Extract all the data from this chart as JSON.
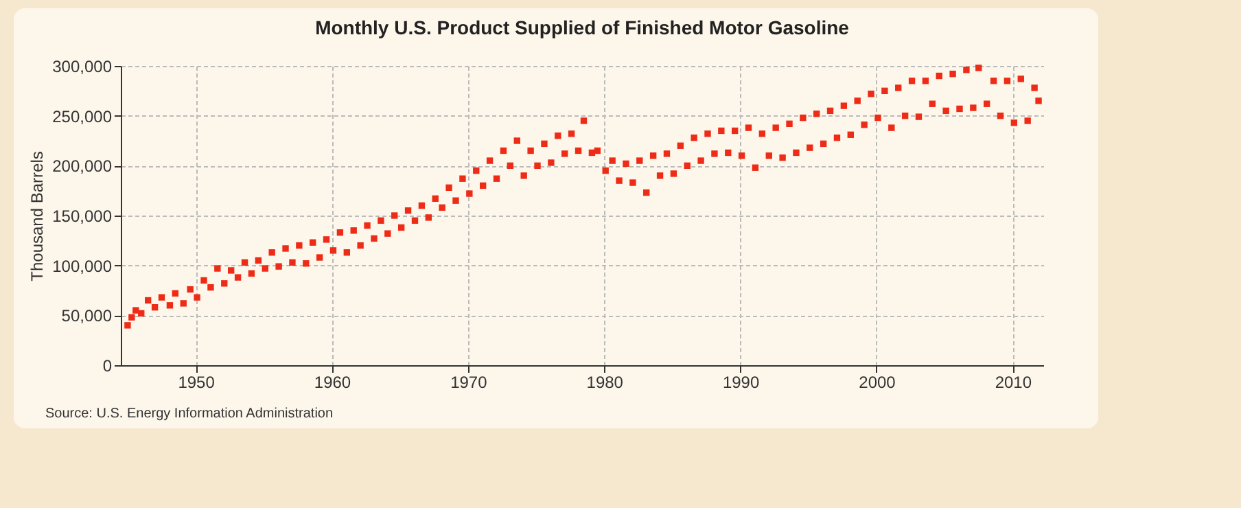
{
  "chart_data": {
    "type": "scatter",
    "title": "Monthly U.S. Product Supplied of Finished Motor Gasoline",
    "ylabel": "Thousand Barrels",
    "annotations": [
      "Source: U.S. Energy Information Administration"
    ],
    "marker": "square",
    "grid": true,
    "xlim": [
      1944.5,
      2012.25
    ],
    "xticks": [
      1950,
      1960,
      1970,
      1980,
      1990,
      2000,
      2010
    ],
    "ylim": [
      0,
      300000
    ],
    "yticks": [
      {
        "value": 0,
        "label": "0"
      },
      {
        "value": 50000,
        "label": "50,000"
      },
      {
        "value": 100000,
        "label": "100,000"
      },
      {
        "value": 150000,
        "label": "150,000"
      },
      {
        "value": 200000,
        "label": "200,000"
      },
      {
        "value": 250000,
        "label": "250,000"
      },
      {
        "value": 300000,
        "label": "300,000"
      }
    ],
    "x": [
      1945.0,
      1945.3,
      1945.6,
      1946.0,
      1946.5,
      1947.0,
      1947.5,
      1948.1,
      1948.5,
      1949.1,
      1949.6,
      1950.1,
      1950.6,
      1951.1,
      1951.6,
      1952.1,
      1952.6,
      1953.1,
      1953.6,
      1954.1,
      1954.6,
      1955.1,
      1955.6,
      1956.1,
      1956.6,
      1957.1,
      1957.6,
      1958.1,
      1958.6,
      1959.1,
      1959.6,
      1960.1,
      1960.6,
      1961.1,
      1961.6,
      1962.1,
      1962.6,
      1963.1,
      1963.6,
      1964.1,
      1964.6,
      1965.1,
      1965.6,
      1966.1,
      1966.6,
      1967.1,
      1967.6,
      1968.1,
      1968.6,
      1969.1,
      1969.6,
      1970.1,
      1970.6,
      1971.1,
      1971.6,
      1972.1,
      1972.6,
      1973.1,
      1973.6,
      1974.1,
      1974.6,
      1975.1,
      1975.6,
      1976.1,
      1976.6,
      1977.1,
      1977.6,
      1978.1,
      1978.5,
      1979.1,
      1979.5,
      1980.1,
      1980.6,
      1981.1,
      1981.6,
      1982.1,
      1982.6,
      1983.1,
      1983.6,
      1984.1,
      1984.6,
      1985.1,
      1985.6,
      1986.1,
      1986.6,
      1987.1,
      1987.6,
      1988.1,
      1988.6,
      1989.1,
      1989.6,
      1990.1,
      1990.6,
      1991.1,
      1991.6,
      1992.1,
      1992.6,
      1993.1,
      1993.6,
      1994.1,
      1994.6,
      1995.1,
      1995.6,
      1996.1,
      1996.6,
      1997.1,
      1997.6,
      1998.1,
      1998.6,
      1999.1,
      1999.6,
      2000.1,
      2000.6,
      2001.1,
      2001.6,
      2002.1,
      2002.6,
      2003.1,
      2003.6,
      2004.1,
      2004.6,
      2005.1,
      2005.6,
      2006.1,
      2006.6,
      2007.1,
      2007.5,
      2008.1,
      2008.6,
      2009.1,
      2009.6,
      2010.1,
      2010.6,
      2011.1,
      2011.6,
      2011.9
    ],
    "series": [
      {
        "color": "#ee2b17",
        "values": [
          40000,
          48000,
          55000,
          52000,
          65000,
          58000,
          68000,
          60000,
          72000,
          62000,
          76000,
          68000,
          85000,
          78000,
          97000,
          82000,
          95000,
          88000,
          103000,
          92000,
          105000,
          97000,
          113000,
          99000,
          117000,
          103000,
          120000,
          102000,
          123000,
          108000,
          126000,
          115000,
          133000,
          113000,
          135000,
          120000,
          140000,
          127000,
          145000,
          132000,
          150000,
          138000,
          155000,
          145000,
          160000,
          148000,
          167000,
          158000,
          178000,
          165000,
          187000,
          172000,
          195000,
          180000,
          205000,
          187000,
          215000,
          200000,
          225000,
          190000,
          215000,
          200000,
          222000,
          203000,
          230000,
          212000,
          232000,
          215000,
          245000,
          213000,
          215000,
          195000,
          205000,
          185000,
          202000,
          183000,
          205000,
          173000,
          210000,
          190000,
          212000,
          192000,
          220000,
          200000,
          228000,
          205000,
          232000,
          212000,
          235000,
          213000,
          235000,
          210000,
          238000,
          198000,
          232000,
          210000,
          238000,
          208000,
          242000,
          213000,
          248000,
          218000,
          252000,
          222000,
          255000,
          228000,
          260000,
          231000,
          265000,
          241000,
          272000,
          248000,
          275000,
          238000,
          278000,
          250000,
          285000,
          249000,
          285000,
          262000,
          290000,
          255000,
          292000,
          257000,
          296000,
          258000,
          298000,
          262000,
          285000,
          250000,
          285000,
          243000,
          287000,
          245000,
          278000,
          265000
        ]
      }
    ]
  }
}
